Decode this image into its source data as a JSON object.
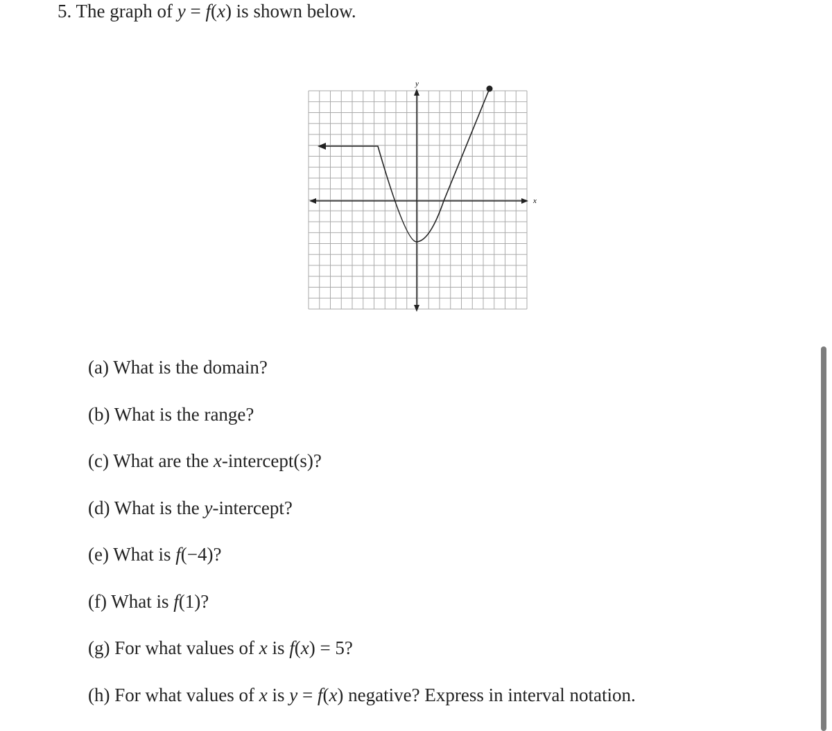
{
  "stem": [
    "5. The graph of ",
    "y",
    " = ",
    "f",
    "(",
    "x",
    ") is shown below."
  ],
  "graph": {
    "x_label": "x",
    "y_label": "y"
  },
  "questions": [
    [
      "(a) What is the domain?"
    ],
    [
      "(b) What is the range?"
    ],
    [
      "(c) What are the ",
      "x",
      "-intercept(s)?"
    ],
    [
      "(d) What is the ",
      "y",
      "-intercept?"
    ],
    [
      "(e) What is ",
      "f",
      "(−4)?"
    ],
    [
      "(f) What is ",
      "f",
      "(1)?"
    ],
    [
      "(g) For what values of ",
      "x",
      " is ",
      "f",
      "(",
      "x",
      ") = 5?"
    ],
    [
      "(h) For what values of ",
      "x",
      " is ",
      "y",
      " = ",
      "f",
      "(",
      "x",
      ") negative? Express in interval notation."
    ]
  ]
}
